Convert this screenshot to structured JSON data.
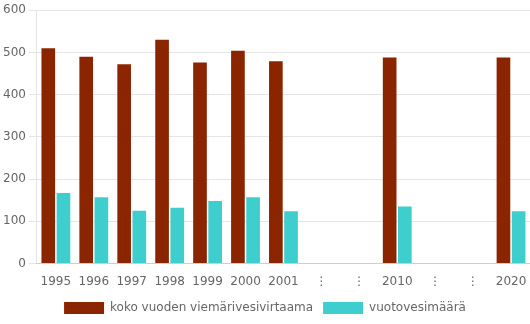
{
  "chart_data": {
    "type": "bar",
    "categories": [
      "1995",
      "1996",
      "1997",
      "1998",
      "1999",
      "2000",
      "2001",
      "⋮",
      "⋮",
      "2010",
      "⋮",
      "⋮",
      "2020"
    ],
    "series": [
      {
        "name": "koko vuoden viemärivesivirtaama",
        "color": "#8B2500",
        "values": [
          510,
          490,
          472,
          530,
          476,
          504,
          479,
          null,
          null,
          488,
          null,
          null,
          488
        ]
      },
      {
        "name": "vuotovesimäärä",
        "color": "#3ECECE",
        "values": [
          167,
          157,
          125,
          132,
          148,
          157,
          124,
          null,
          null,
          135,
          null,
          null,
          124
        ]
      }
    ],
    "ylim": [
      0,
      600
    ],
    "yticks": [
      0,
      100,
      200,
      300,
      400,
      500,
      600
    ],
    "grid": true,
    "legend": "bottom"
  }
}
